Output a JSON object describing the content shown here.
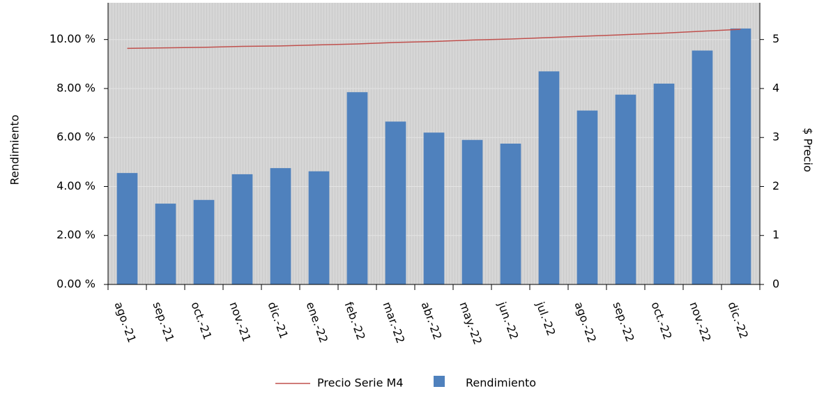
{
  "chart_data": {
    "type": "bar",
    "categories": [
      "ago.-21",
      "sep.-21",
      "oct.-21",
      "nov.-21",
      "dic.-21",
      "ene.-22",
      "feb.-22",
      "mar.-22",
      "abr.-22",
      "may.-22",
      "jun.-22",
      "jul.-22",
      "ago.-22",
      "sep.-22",
      "oct.-22",
      "nov.-22",
      "dic.-22"
    ],
    "series": [
      {
        "name": "Precio Serie M4",
        "type": "line",
        "color": "#c0504d",
        "axis": "y2",
        "values": [
          4.82,
          4.83,
          4.84,
          4.86,
          4.87,
          4.89,
          4.91,
          4.94,
          4.96,
          4.99,
          5.01,
          5.04,
          5.07,
          5.1,
          5.13,
          5.17,
          5.21
        ]
      },
      {
        "name": "Rendimiento",
        "type": "bar",
        "color": "#4f81bd",
        "values": [
          4.55,
          3.3,
          3.45,
          4.5,
          4.75,
          4.62,
          7.85,
          6.65,
          6.2,
          5.9,
          5.75,
          8.7,
          7.1,
          7.75,
          8.2,
          9.55,
          10.45
        ]
      }
    ],
    "ylabel": "Rendimiento",
    "y2label": "$ Precio",
    "ylim": [
      0,
      11.5
    ],
    "yticks": [
      {
        "value": 0,
        "label": "0.00 %"
      },
      {
        "value": 2,
        "label": "2.00 %"
      },
      {
        "value": 4,
        "label": "4.00 %"
      },
      {
        "value": 6,
        "label": "6.00 %"
      },
      {
        "value": 8,
        "label": "8.00 %"
      },
      {
        "value": 10,
        "label": "10.00 %"
      }
    ],
    "y2lim": [
      0,
      5.75
    ],
    "y2ticks": [
      0,
      1,
      2,
      3,
      4,
      5
    ],
    "grid": true,
    "legend": "bottom"
  }
}
